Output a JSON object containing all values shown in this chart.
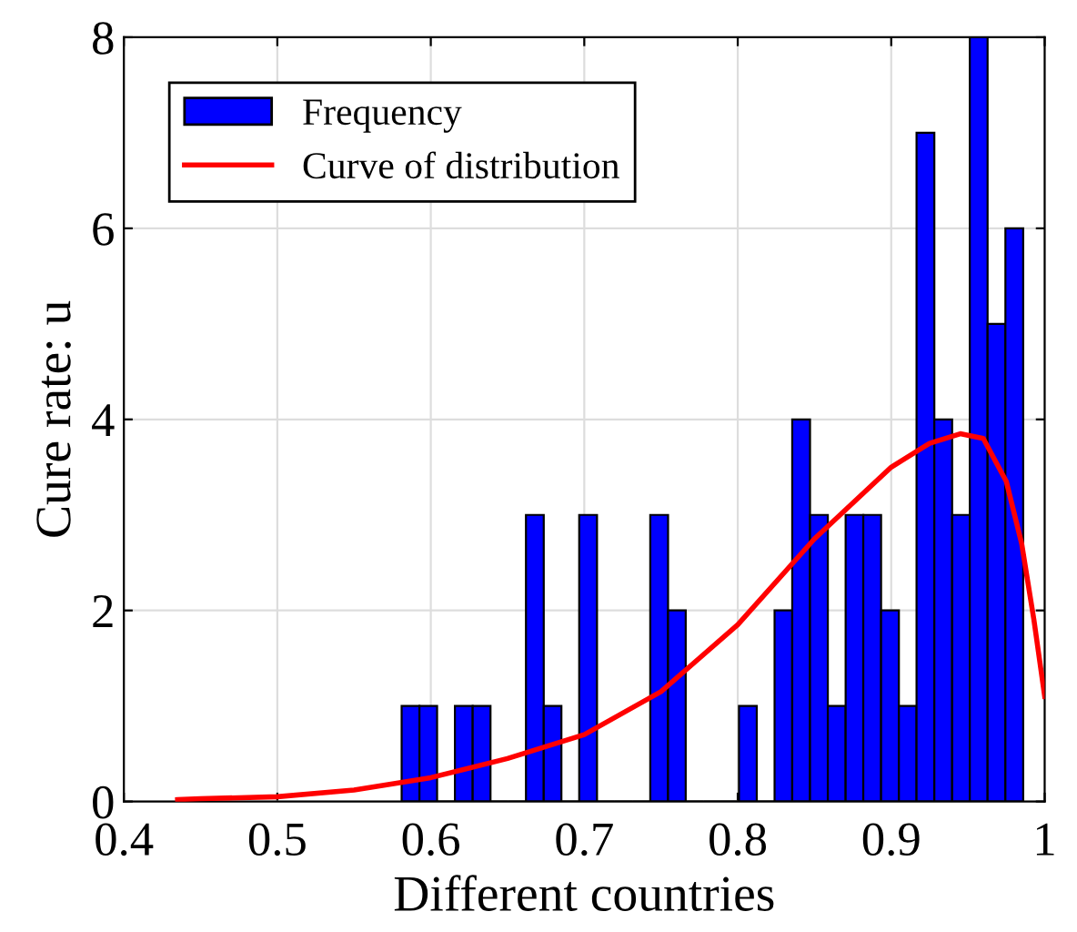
{
  "chart_data": {
    "type": "histogram",
    "xlabel": "Different countries",
    "ylabel": "Cure rate: u",
    "series": [
      {
        "name": "Frequency",
        "color": "#0000ff",
        "bins": [
          0.581,
          0.5926,
          0.6041,
          0.6157,
          0.6273,
          0.6389,
          0.6504,
          0.662,
          0.6736,
          0.6851,
          0.6967,
          0.7083,
          0.7198,
          0.7314,
          0.743,
          0.7546,
          0.7661,
          0.7777,
          0.7893,
          0.8008,
          0.8124,
          0.824,
          0.8355,
          0.8471,
          0.8587,
          0.8703,
          0.8818,
          0.8934,
          0.905,
          0.9165,
          0.9281,
          0.9397,
          0.9512,
          0.9628,
          0.9744,
          0.986
        ],
        "values": [
          1,
          1,
          0,
          1,
          1,
          0,
          0,
          3,
          1,
          0,
          3,
          0,
          0,
          0,
          3,
          2,
          0,
          0,
          0,
          1,
          0,
          2,
          4,
          3,
          1,
          3,
          3,
          2,
          1,
          7,
          4,
          3,
          8,
          5,
          6
        ]
      },
      {
        "name": "Curve of distribution",
        "type": "line",
        "color": "#ff0000",
        "x": [
          0.435,
          0.45,
          0.5,
          0.55,
          0.6,
          0.65,
          0.7,
          0.75,
          0.8,
          0.85,
          0.9,
          0.925,
          0.945,
          0.96,
          0.975,
          0.985,
          0.993,
          1.0
        ],
        "values": [
          0.02,
          0.03,
          0.05,
          0.12,
          0.25,
          0.45,
          0.7,
          1.15,
          1.85,
          2.75,
          3.5,
          3.75,
          3.85,
          3.8,
          3.35,
          2.7,
          1.9,
          1.1
        ]
      }
    ],
    "xlim": [
      0.4,
      1
    ],
    "xticks": [
      0.4,
      0.5,
      0.6,
      0.7,
      0.8,
      0.9,
      1
    ],
    "ylim": [
      0,
      8
    ],
    "yticks": [
      0,
      2,
      4,
      6,
      8
    ],
    "grid": true,
    "legend": "top left"
  }
}
